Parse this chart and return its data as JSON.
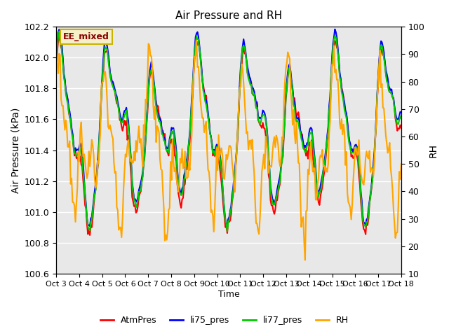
{
  "title": "Air Pressure and RH",
  "xlabel": "Time",
  "ylabel_left": "Air Pressure (kPa)",
  "ylabel_right": "RH",
  "annotation": "EE_mixed",
  "ylim_left": [
    100.6,
    102.2
  ],
  "ylim_right": [
    10,
    100
  ],
  "yticks_left": [
    100.6,
    100.8,
    101.0,
    101.2,
    101.4,
    101.6,
    101.8,
    102.0,
    102.2
  ],
  "yticks_right": [
    10,
    20,
    30,
    40,
    50,
    60,
    70,
    80,
    90,
    100
  ],
  "xtick_labels": [
    "Oct 3",
    "Oct 4",
    "Oct 5",
    "Oct 6",
    "Oct 7",
    "Oct 8",
    "Oct 9",
    "Oct 10",
    "Oct 11",
    "Oct 12",
    "Oct 13",
    "Oct 14",
    "Oct 15",
    "Oct 16",
    "Oct 17",
    "Oct 18"
  ],
  "colors": {
    "AtmPres": "#ff0000",
    "li75_pres": "#0000ff",
    "li77_pres": "#00cc00",
    "RH": "#ffa500",
    "background": "#e8e8e8",
    "grid": "#ffffff"
  },
  "linewidths": {
    "AtmPres": 1.5,
    "li75_pres": 1.5,
    "li77_pres": 1.5,
    "RH": 1.5
  },
  "legend_labels": [
    "AtmPres",
    "li75_pres",
    "li77_pres",
    "RH"
  ],
  "n_points": 360,
  "seed": 42
}
